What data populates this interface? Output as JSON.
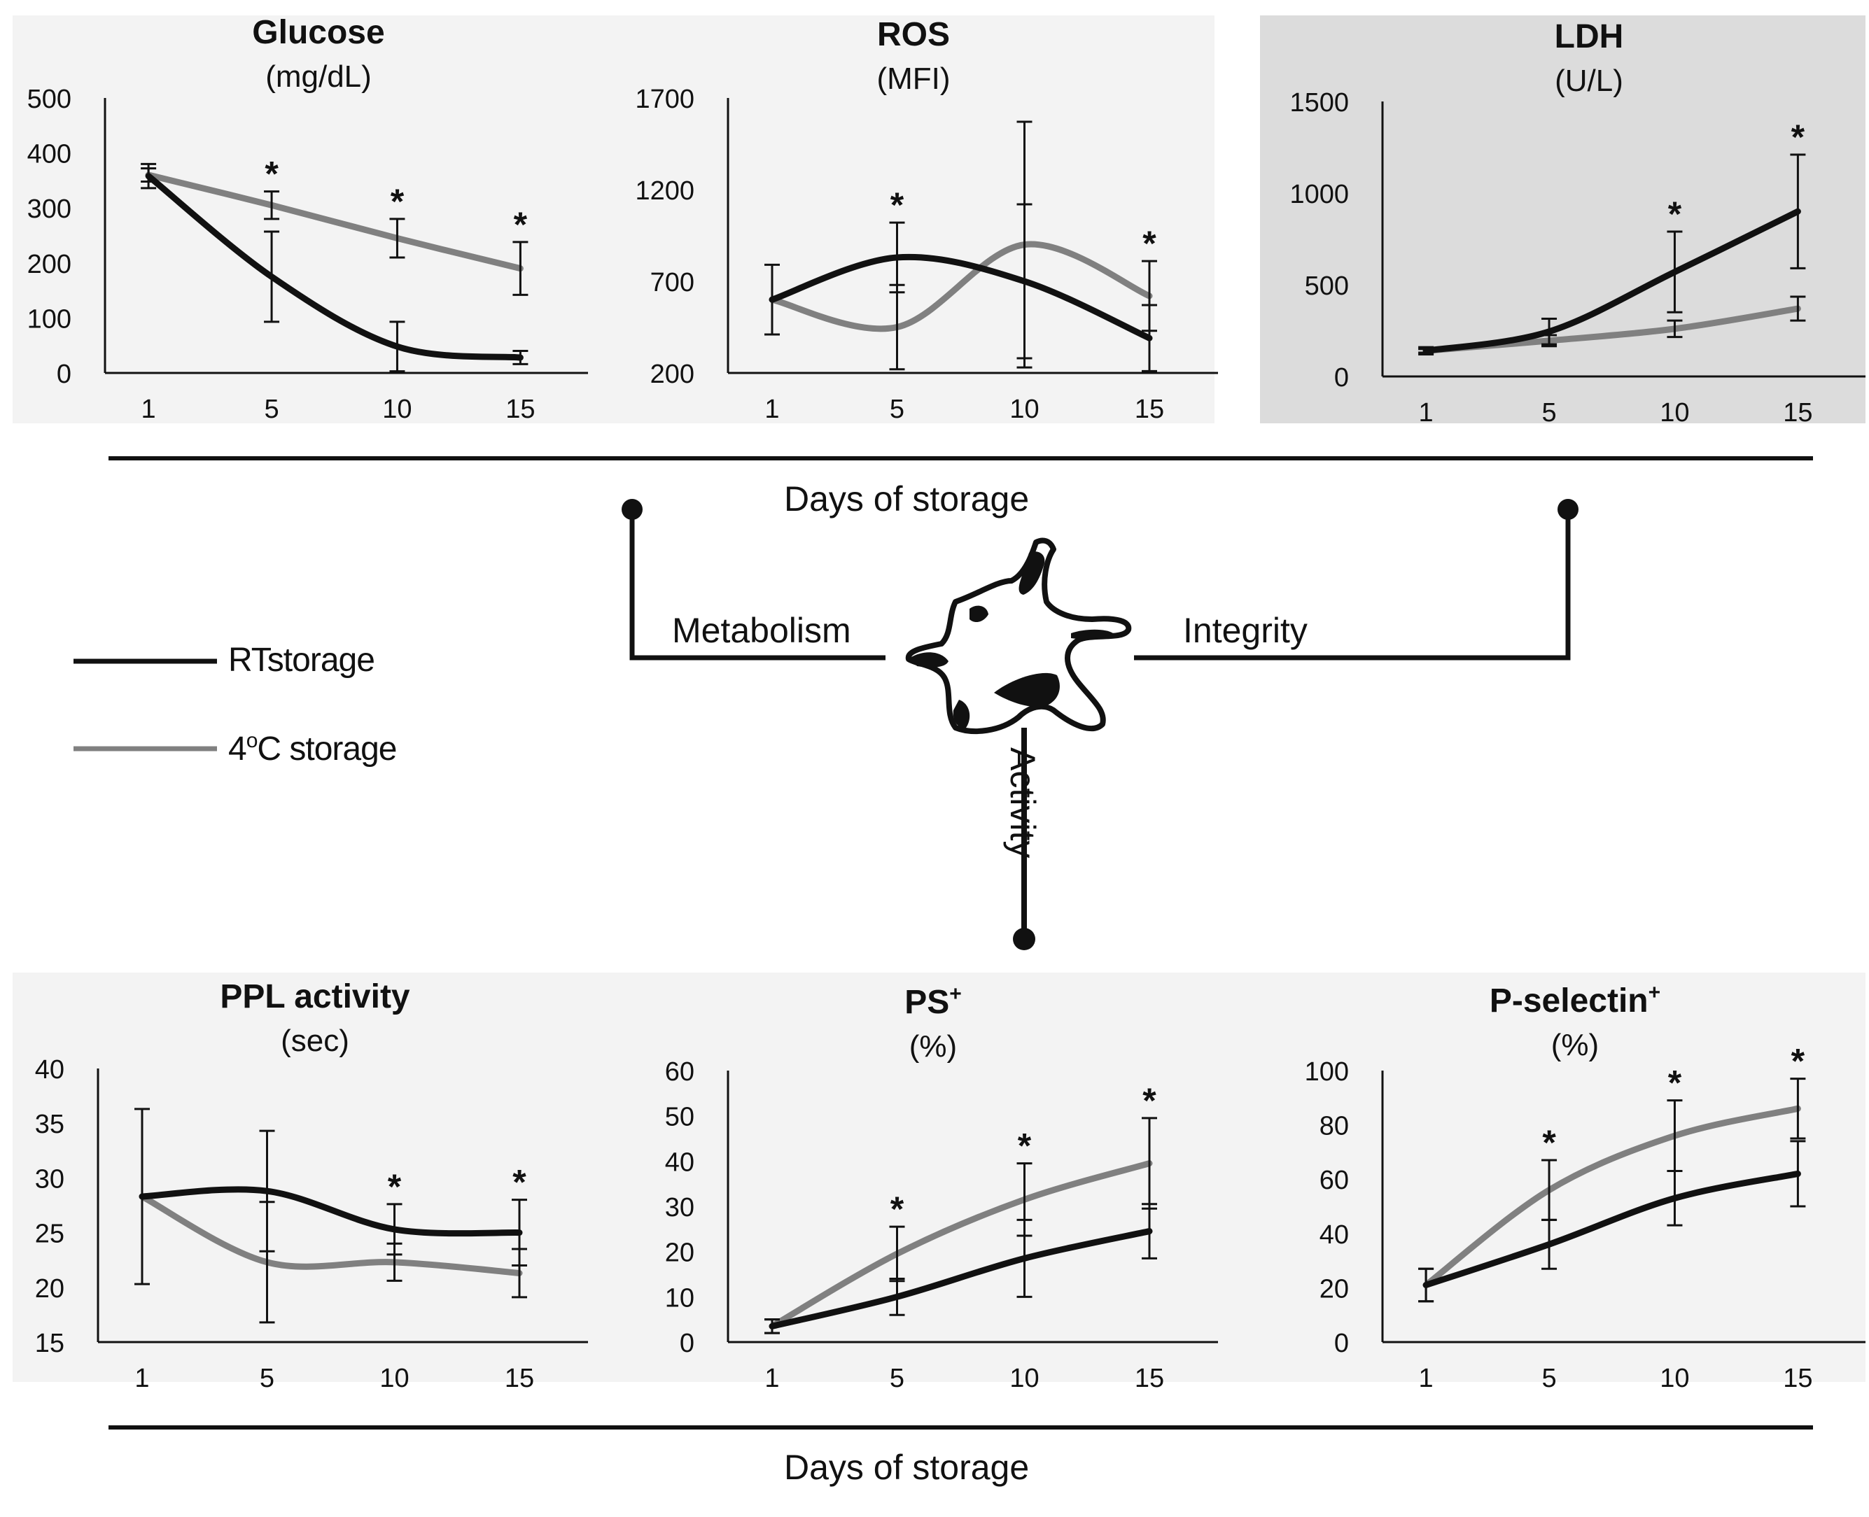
{
  "colors": {
    "rt": "#111111",
    "cold": "#808080",
    "panel_bg": "#f3f3f3",
    "panel_bg_dark": "#dcdcdc",
    "axis": "#111111"
  },
  "legend": [
    {
      "name": "RT storage",
      "label_a": "RT",
      "label_b": "storage",
      "color": "#111111"
    },
    {
      "name": "4oC storage",
      "label_a": "4",
      "label_sup": "o",
      "label_b": "C storage",
      "color": "#808080"
    }
  ],
  "xaxis_title_top": "Days of storage",
  "xaxis_title_bottom": "Days of storage",
  "branches": {
    "metabolism": "Metabolism",
    "integrity": "Integrity",
    "activity": "Activity"
  },
  "chart_data": [
    {
      "type": "line",
      "title": "Glucose",
      "title_sup": "",
      "subtitle": "(mg/dL)",
      "categories": [
        "1",
        "5",
        "10",
        "15"
      ],
      "ylim": [
        0,
        500
      ],
      "yticks": [
        "0",
        "100",
        "200",
        "300",
        "400",
        "500"
      ],
      "series": [
        {
          "name": "RT storage",
          "values": [
            358,
            175,
            48,
            28
          ],
          "err": [
            22,
            82,
            45,
            12
          ]
        },
        {
          "name": "4oC storage",
          "values": [
            360,
            305,
            245,
            190
          ],
          "err": [
            12,
            25,
            35,
            48
          ]
        }
      ],
      "significance": [
        "",
        "*",
        "*",
        "*"
      ]
    },
    {
      "type": "line",
      "title": "ROS",
      "title_sup": "",
      "subtitle": "(MFI)",
      "categories": [
        "1",
        "5",
        "10",
        "15"
      ],
      "ylim": [
        200,
        1700
      ],
      "yticks": [
        "200",
        "700",
        "1200",
        "1700"
      ],
      "series": [
        {
          "name": "RT storage",
          "values": [
            600,
            830,
            700,
            390
          ],
          "err": [
            190,
            190,
            420,
            180
          ]
        },
        {
          "name": "4oC storage",
          "values": [
            600,
            450,
            900,
            620
          ],
          "err": [
            0,
            230,
            670,
            190
          ]
        }
      ],
      "significance": [
        "",
        "*",
        "",
        "*"
      ]
    },
    {
      "type": "line",
      "title": "LDH",
      "title_sup": "",
      "subtitle": "(U/L)",
      "categories": [
        "1",
        "5",
        "10",
        "15"
      ],
      "ylim": [
        0,
        1500
      ],
      "yticks": [
        "0",
        "500",
        "1000",
        "1500"
      ],
      "series": [
        {
          "name": "RT storage",
          "values": [
            140,
            245,
            570,
            900
          ],
          "err": [
            20,
            70,
            220,
            310
          ]
        },
        {
          "name": "4oC storage",
          "values": [
            140,
            195,
            260,
            370
          ],
          "err": [
            10,
            30,
            45,
            65
          ]
        }
      ],
      "significance": [
        "",
        "",
        "*",
        "*"
      ]
    },
    {
      "type": "line",
      "title": "PPL activity",
      "title_sup": "",
      "subtitle": "(sec)",
      "categories": [
        "1",
        "5",
        "10",
        "15"
      ],
      "ylim": [
        15,
        40
      ],
      "yticks": [
        "15",
        "20",
        "25",
        "30",
        "35",
        "40"
      ],
      "series": [
        {
          "name": "RT storage",
          "values": [
            28.3,
            28.8,
            25.3,
            25.0
          ],
          "err": [
            8,
            5.5,
            2.3,
            3.0
          ]
        },
        {
          "name": "4oC storage",
          "values": [
            28.3,
            22.3,
            22.3,
            21.3
          ],
          "err": [
            0,
            5.5,
            1.7,
            2.2
          ]
        }
      ],
      "significance": [
        "",
        "",
        "*",
        "*"
      ]
    },
    {
      "type": "line",
      "title": "PS",
      "title_sup": "+",
      "subtitle": "(%)",
      "categories": [
        "1",
        "5",
        "10",
        "15"
      ],
      "ylim": [
        0,
        60
      ],
      "yticks": [
        "0",
        "10",
        "20",
        "30",
        "40",
        "50",
        "60"
      ],
      "series": [
        {
          "name": "RT storage",
          "values": [
            3.5,
            10,
            18.5,
            24.5
          ],
          "err": [
            1.5,
            4,
            8.5,
            6
          ]
        },
        {
          "name": "4oC storage",
          "values": [
            3.5,
            19.5,
            31.5,
            39.5
          ],
          "err": [
            1.5,
            6,
            8,
            10
          ]
        }
      ],
      "significance": [
        "",
        "*",
        "*",
        "*"
      ]
    },
    {
      "type": "line",
      "title": "P-selectin",
      "title_sup": "+",
      "subtitle": "(%)",
      "categories": [
        "1",
        "5",
        "10",
        "15"
      ],
      "ylim": [
        0,
        100
      ],
      "yticks": [
        "0",
        "20",
        "40",
        "60",
        "80",
        "100"
      ],
      "series": [
        {
          "name": "RT storage",
          "values": [
            21,
            36,
            53,
            62
          ],
          "err": [
            6,
            9,
            10,
            12
          ]
        },
        {
          "name": "4oC storage",
          "values": [
            21,
            56,
            76,
            86
          ],
          "err": [
            6,
            11,
            13,
            11
          ]
        }
      ],
      "significance": [
        "",
        "*",
        "*",
        "*"
      ]
    }
  ]
}
